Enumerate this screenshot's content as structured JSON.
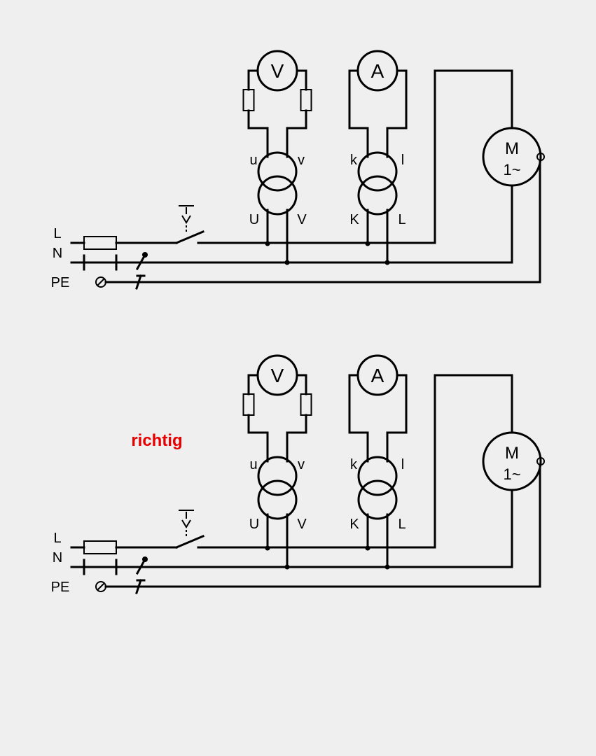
{
  "verdict": {
    "text": "richtig",
    "color": "#e60000"
  },
  "meters": {
    "voltmeter_symbol": "V",
    "ammeter_symbol": "A"
  },
  "voltage_transformer": {
    "secondary_left": "u",
    "secondary_right": "v",
    "primary_left": "U",
    "primary_right": "V"
  },
  "current_transformer": {
    "secondary_left": "k",
    "secondary_right": "l",
    "primary_left": "K",
    "primary_right": "L"
  },
  "motor": {
    "letter": "M",
    "phase": "1~"
  },
  "conductors": {
    "line": "L",
    "neutral": "N",
    "protective_earth": "PE"
  },
  "colors": {
    "background": "#efefef",
    "wire": "#000000",
    "verdict": "#e60000"
  }
}
